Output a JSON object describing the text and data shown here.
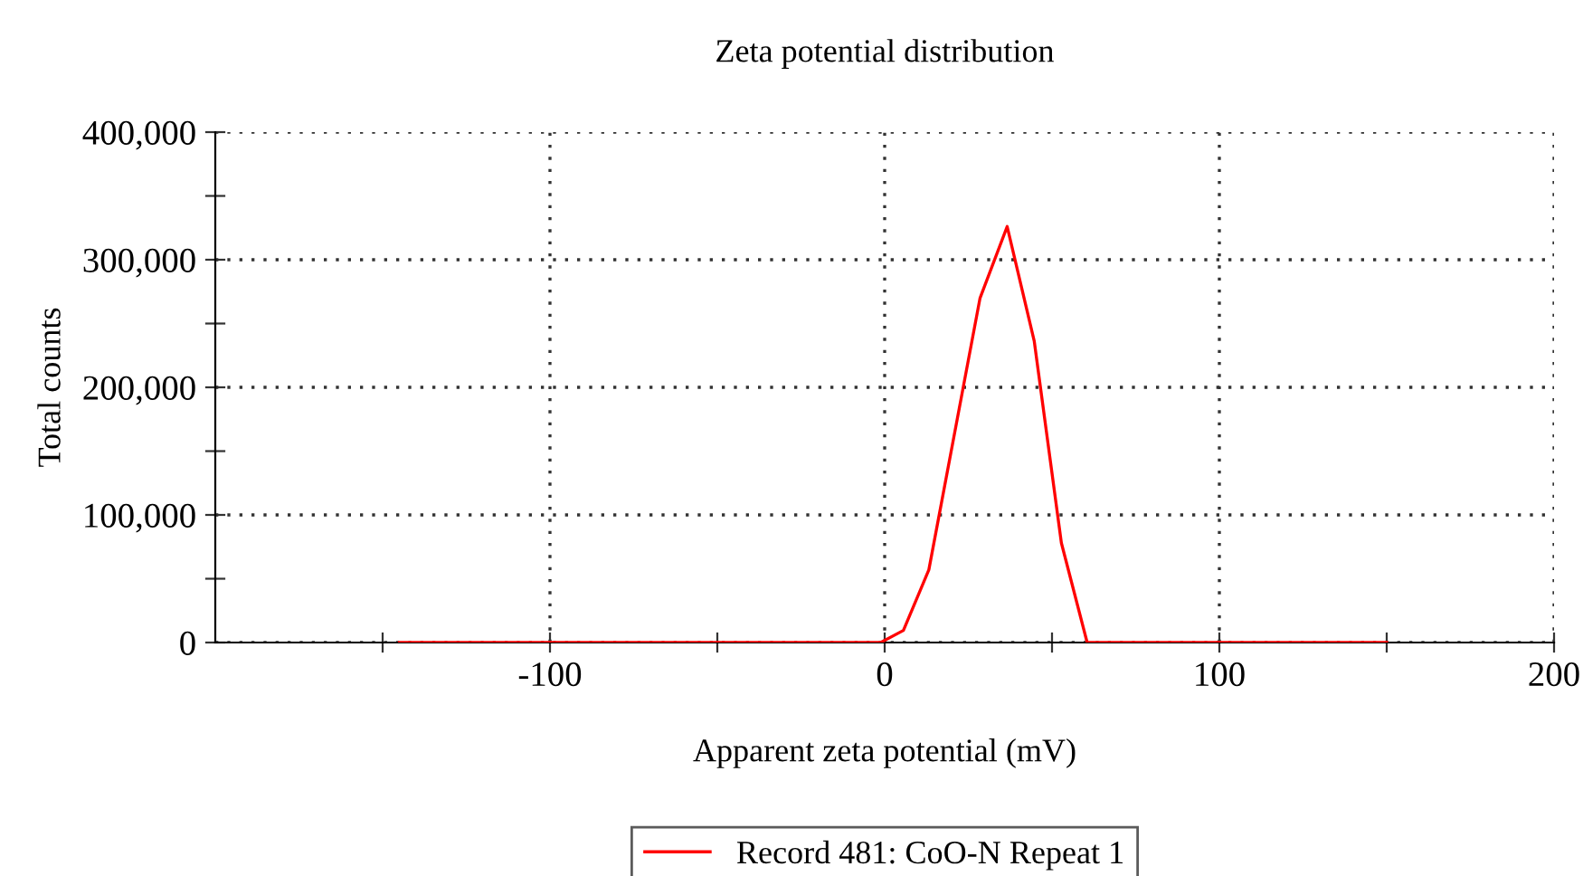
{
  "chart_data": {
    "type": "line",
    "title": "Zeta potential distribution",
    "xlabel": "Apparent zeta potential (mV)",
    "ylabel": "Total counts",
    "series": [
      {
        "name": "Record 481: CoO-N Repeat 1",
        "color": "#ff0000",
        "x": [
          -145,
          -10,
          -1.2,
          5.6,
          13.2,
          28.5,
          36.6,
          44.7,
          52.8,
          60.5,
          70,
          150
        ],
        "values": [
          0,
          0,
          0,
          9500,
          57000,
          270000,
          326000,
          236000,
          78000,
          0,
          0,
          0
        ]
      }
    ],
    "xlim": [
      -200,
      200
    ],
    "xticks": [
      {
        "value": -150,
        "label": null
      },
      -100,
      {
        "value": -50,
        "label": null
      },
      0,
      {
        "value": 50,
        "label": null
      },
      100,
      {
        "value": 150,
        "label": null
      },
      200
    ],
    "ylim": [
      0,
      400000
    ],
    "yticks": [
      {
        "value": 0,
        "label": "0"
      },
      {
        "value": 50000,
        "label": null
      },
      {
        "value": 100000,
        "label": "100,000"
      },
      {
        "value": 150000,
        "label": null
      },
      {
        "value": 200000,
        "label": "200,000"
      },
      {
        "value": 250000,
        "label": null
      },
      {
        "value": 300000,
        "label": "300,000"
      },
      {
        "value": 350000,
        "label": null
      },
      {
        "value": 400000,
        "label": "400,000"
      }
    ],
    "grid": true,
    "legend": "bottom",
    "marker": "none",
    "line_style": "solid"
  }
}
